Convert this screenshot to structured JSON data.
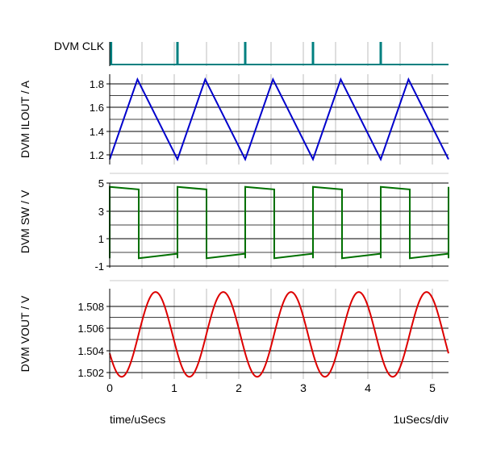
{
  "chart_data": {
    "type": "line",
    "x_unit_label": "time/uSecs",
    "x_scale_label": "1uSecs/div",
    "xlim": [
      0,
      5.25
    ],
    "x_ticks": [
      "0",
      "1",
      "2",
      "3",
      "4",
      "5"
    ],
    "panels": [
      {
        "id": "clk",
        "ylabel": "DVM CLK",
        "color": "#008080",
        "y_ticks": [],
        "ylim": [
          0,
          1
        ],
        "pulses_at_us": [
          0.02,
          1.05,
          2.1,
          3.15,
          4.2
        ]
      },
      {
        "id": "ilout",
        "ylabel": "DVM ILOUT / A",
        "color": "#0000cc",
        "y_ticks": [
          "1.8",
          "1.6",
          "1.4",
          "1.2"
        ],
        "y_tick_values": [
          1.8,
          1.6,
          1.4,
          1.2
        ],
        "ylim": [
          1.08,
          1.95
        ],
        "waveform": "triangle",
        "period_us": 1.05,
        "min": 1.13,
        "max": 1.9,
        "rise_start_us": 0.0,
        "peak_offset_us": 0.43
      },
      {
        "id": "sw",
        "ylabel": "DVM SW / V",
        "color": "#007000",
        "y_ticks": [
          "5",
          "3",
          "1",
          "-1"
        ],
        "y_tick_values": [
          5,
          3,
          1,
          -1
        ],
        "ylim": [
          -1.35,
          5.3
        ],
        "waveform": "square",
        "period_us": 1.05,
        "high_start_us": 0.0,
        "high_duration_us": 0.45,
        "high_level": [
          5.0,
          4.8
        ],
        "low_level": [
          -0.6,
          -0.25
        ]
      },
      {
        "id": "vout",
        "ylabel": "DVM VOUT / V",
        "color": "#dd0000",
        "y_ticks": [
          "1.508",
          "1.506",
          "1.504",
          "1.502"
        ],
        "y_tick_values": [
          1.508,
          1.506,
          1.504,
          1.502
        ],
        "ylim": [
          1.5011,
          1.5092
        ],
        "waveform": "sine",
        "period_us": 1.05,
        "center": 1.5051,
        "amplitude": 0.0038,
        "phase_peak_us": 0.71,
        "value_at_0": 1.5045
      }
    ]
  }
}
